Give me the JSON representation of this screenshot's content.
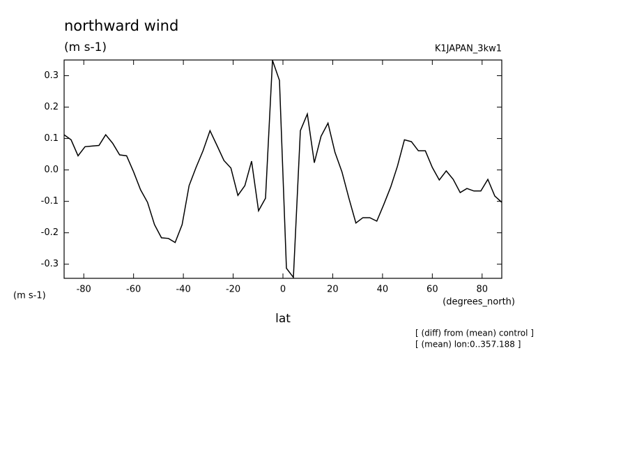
{
  "chart_data": {
    "type": "line",
    "title": "northward wind",
    "subtitle": "(m s-1)",
    "run_label": "K1JAPAN_3kw1",
    "y_unit_label": "(m s-1)",
    "x_unit_label": "(degrees_north)",
    "x_label": "lat",
    "notes": [
      "[ (diff) from (mean) control ]",
      "[ (mean) lon:0..357.188 ]"
    ],
    "x": [
      -87.9,
      -85.1,
      -82.3,
      -79.5,
      -76.7,
      -73.9,
      -71.2,
      -68.4,
      -65.6,
      -62.8,
      -60.0,
      -57.2,
      -54.4,
      -51.6,
      -48.8,
      -46.0,
      -43.3,
      -40.5,
      -37.7,
      -34.9,
      -32.1,
      -29.3,
      -26.5,
      -23.7,
      -20.9,
      -18.1,
      -15.3,
      -12.6,
      -9.8,
      -7.0,
      -4.2,
      -1.4,
      1.4,
      4.2,
      7.0,
      9.8,
      12.6,
      15.3,
      18.1,
      20.9,
      23.7,
      26.5,
      29.3,
      32.1,
      34.9,
      37.7,
      40.5,
      43.3,
      46.0,
      48.8,
      51.6,
      54.4,
      57.2,
      60.0,
      62.8,
      65.6,
      68.4,
      71.2,
      73.9,
      76.7,
      79.5,
      82.3,
      85.1,
      87.9
    ],
    "series": [
      {
        "color": "#000000",
        "values": [
          0.112,
          0.096,
          0.045,
          0.074,
          0.076,
          0.078,
          0.112,
          0.085,
          0.048,
          0.045,
          -0.006,
          -0.063,
          -0.103,
          -0.174,
          -0.216,
          -0.218,
          -0.231,
          -0.174,
          -0.05,
          0.008,
          0.061,
          0.125,
          0.078,
          0.03,
          0.006,
          -0.081,
          -0.05,
          0.028,
          -0.13,
          -0.09,
          0.349,
          0.285,
          -0.313,
          -0.342,
          0.125,
          0.178,
          0.023,
          0.107,
          0.149,
          0.056,
          -0.006,
          -0.09,
          -0.169,
          -0.152,
          -0.152,
          -0.163,
          -0.11,
          -0.054,
          0.012,
          0.096,
          0.09,
          0.061,
          0.061,
          0.008,
          -0.032,
          -0.003,
          -0.03,
          -0.072,
          -0.059,
          -0.067,
          -0.067,
          -0.03,
          -0.083,
          -0.103
        ]
      }
    ],
    "xlim": [
      -87.9,
      87.9
    ],
    "ylim": [
      -0.345,
      0.35
    ],
    "xticks": [
      -80,
      -60,
      -40,
      -20,
      0,
      20,
      40,
      60,
      80
    ],
    "yticks": [
      -0.3,
      -0.2,
      -0.1,
      {
        "value": 0,
        "label": "0.0"
      },
      0.1,
      0.2,
      0.3
    ]
  }
}
